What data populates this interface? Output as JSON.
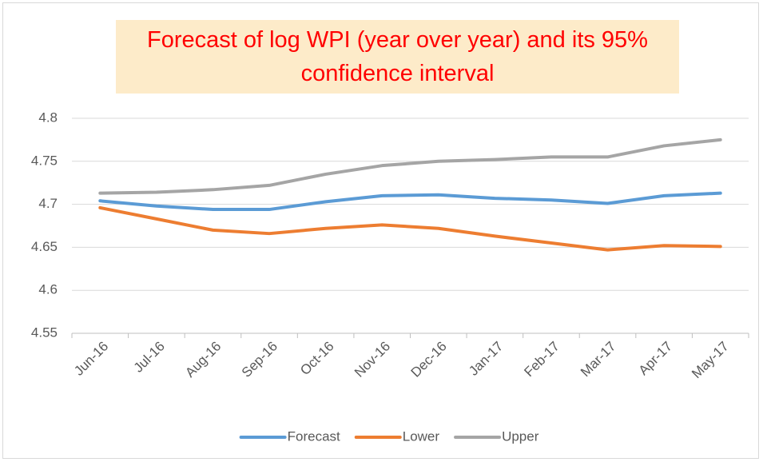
{
  "chart_data": {
    "type": "line",
    "title": "Forecast of log WPI (year over year) and its 95% confidence interval",
    "categories": [
      "Jun-16",
      "Jul-16",
      "Aug-16",
      "Sep-16",
      "Oct-16",
      "Nov-16",
      "Dec-16",
      "Jan-17",
      "Feb-17",
      "Mar-17",
      "Apr-17",
      "May-17"
    ],
    "series": [
      {
        "name": "Forecast",
        "color": "#5b9bd5",
        "values": [
          4.704,
          4.698,
          4.694,
          4.694,
          4.703,
          4.71,
          4.711,
          4.707,
          4.705,
          4.701,
          4.71,
          4.713
        ]
      },
      {
        "name": "Lower",
        "color": "#ed7d31",
        "values": [
          4.696,
          4.683,
          4.67,
          4.666,
          4.672,
          4.676,
          4.672,
          4.663,
          4.655,
          4.647,
          4.652,
          4.651
        ]
      },
      {
        "name": "Upper",
        "color": "#a5a5a5",
        "values": [
          4.713,
          4.714,
          4.717,
          4.722,
          4.735,
          4.745,
          4.75,
          4.752,
          4.755,
          4.755,
          4.768,
          4.775
        ]
      }
    ],
    "ylim": [
      4.55,
      4.8
    ],
    "yticks": [
      4.55,
      4.6,
      4.65,
      4.7,
      4.75,
      4.8
    ],
    "grid": true,
    "legend": "bottom"
  }
}
